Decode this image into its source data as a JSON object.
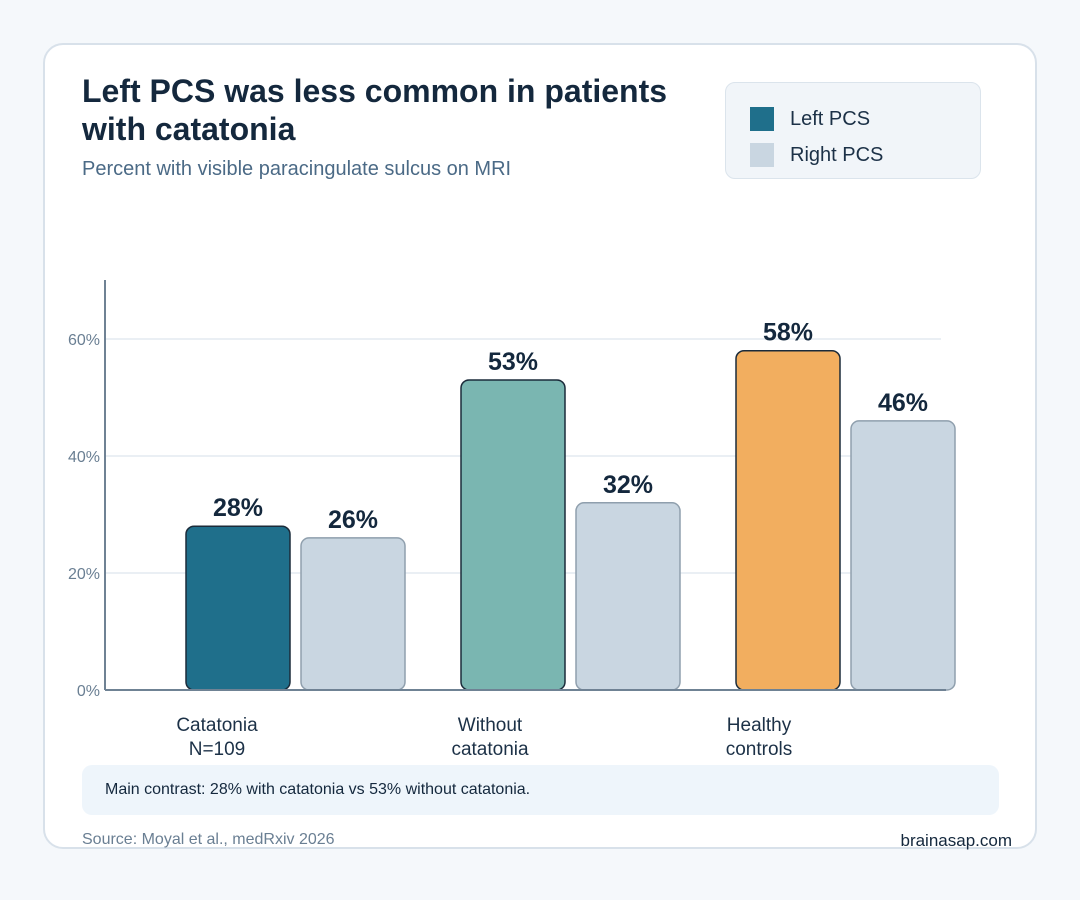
{
  "header": {
    "title": "Left PCS was less common in patients with catatonia",
    "subtitle": "Percent with visible paracingulate sulcus on MRI"
  },
  "legend": [
    {
      "label": "Left PCS",
      "color": "#1f6f8b"
    },
    {
      "label": "Right PCS",
      "color": "#c9d6e1"
    }
  ],
  "chart_data": {
    "type": "bar",
    "title": "Left PCS was less common in patients with catatonia",
    "subtitle": "Percent with visible paracingulate sulcus on MRI",
    "categories": [
      [
        "Catatonia",
        "N=109"
      ],
      [
        "Without",
        "catatonia"
      ],
      [
        "Healthy",
        "controls"
      ]
    ],
    "series": [
      {
        "name": "Left PCS",
        "values": [
          28,
          53,
          58
        ],
        "colors": [
          "#1f6f8b",
          "#7ab6b1",
          "#f2ae5f"
        ]
      },
      {
        "name": "Right PCS",
        "values": [
          26,
          32,
          46
        ],
        "colors": [
          "#c9d6e1",
          "#c9d6e1",
          "#c9d6e1"
        ]
      }
    ],
    "value_labels": [
      [
        "28%",
        "53%",
        "58%"
      ],
      [
        "26%",
        "32%",
        "46%"
      ]
    ],
    "yticks": [
      0,
      20,
      40,
      60
    ],
    "ytick_labels": [
      "0%",
      "20%",
      "40%",
      "60%"
    ],
    "ylim": [
      0,
      70
    ],
    "grid": true,
    "legend_position": "top-right",
    "xlabel": "",
    "ylabel": ""
  },
  "note": "Main contrast: 28% with catatonia vs 53% without catatonia.",
  "footer": {
    "source": "Source: Moyal et al., medRxiv 2026",
    "brand": "brainasap.com"
  }
}
